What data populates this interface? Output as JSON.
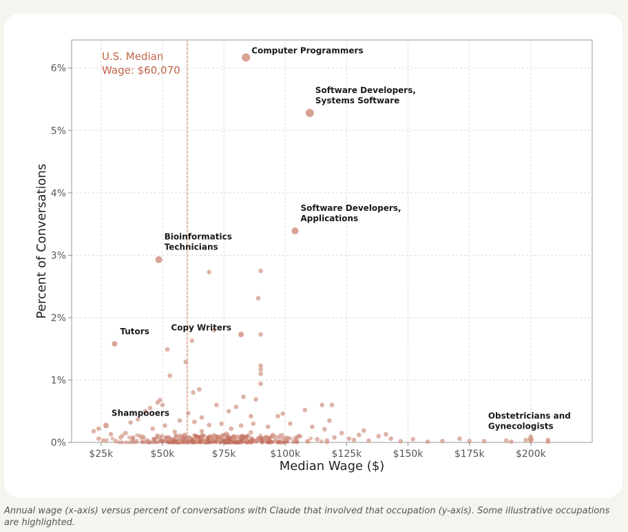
{
  "caption": "Annual wage (x-axis) versus percent of conversations with Claude that involved that occupation (y-axis). Some illustrative occupations are highlighted.",
  "chart_data": {
    "type": "scatter",
    "xlabel": "Median Wage ($)",
    "ylabel": "Percent of Conversations",
    "xlim": [
      13000,
      225000
    ],
    "ylim": [
      0,
      6.45
    ],
    "x_ticks": [
      25000,
      50000,
      75000,
      100000,
      125000,
      150000,
      175000,
      200000
    ],
    "x_tick_labels": [
      "$25k",
      "$50k",
      "$75k",
      "$100k",
      "$125k",
      "$150k",
      "$175k",
      "$200k"
    ],
    "y_ticks": [
      0,
      1,
      2,
      3,
      4,
      5,
      6
    ],
    "y_tick_labels": [
      "0%",
      "1%",
      "2%",
      "3%",
      "4%",
      "5%",
      "6%"
    ],
    "grid": true,
    "colors": {
      "point": "#d4998a",
      "point_dense": "#c47060",
      "reference": "#e8c8bc",
      "reference_text": "#c2644a",
      "label": "#1a1a1a"
    },
    "reference_line": {
      "x": 60070,
      "label_line1": "U.S. Median",
      "label_line2": "Wage: $60,070"
    },
    "highlighted": [
      {
        "x": 84000,
        "y": 6.17,
        "label_lines": [
          "Computer Programmers"
        ],
        "anchor": "right"
      },
      {
        "x": 110000,
        "y": 5.28,
        "label_lines": [
          "Software Developers,",
          "Systems Software"
        ],
        "anchor": "above-right"
      },
      {
        "x": 104000,
        "y": 3.39,
        "label_lines": [
          "Software Developers,",
          "Applications"
        ],
        "anchor": "above-right"
      },
      {
        "x": 48500,
        "y": 2.93,
        "label_lines": [
          "Bioinformatics",
          "Technicians"
        ],
        "anchor": "above-right"
      },
      {
        "x": 30500,
        "y": 1.58,
        "label_lines": [
          "Tutors"
        ],
        "anchor": "above-right"
      },
      {
        "x": 82000,
        "y": 1.73,
        "label_lines": [
          "Copy Writers"
        ],
        "anchor": "left"
      },
      {
        "x": 27000,
        "y": 0.27,
        "label_lines": [
          "Shampooers"
        ],
        "anchor": "above-right"
      },
      {
        "x": 200000,
        "y": 0.05,
        "label_lines": [
          "Obstetricians and",
          "Gynecologists"
        ],
        "anchor": "above"
      }
    ],
    "points": [
      [
        69000,
        2.73
      ],
      [
        90000,
        2.75
      ],
      [
        89000,
        2.31
      ],
      [
        71000,
        1.8
      ],
      [
        90000,
        1.73
      ],
      [
        62000,
        1.63
      ],
      [
        52000,
        1.49
      ],
      [
        59500,
        1.29
      ],
      [
        90000,
        1.23
      ],
      [
        90000,
        1.17
      ],
      [
        90000,
        1.1
      ],
      [
        53000,
        1.07
      ],
      [
        90000,
        0.94
      ],
      [
        65000,
        0.85
      ],
      [
        62500,
        0.8
      ],
      [
        49000,
        0.68
      ],
      [
        48000,
        0.64
      ],
      [
        50000,
        0.6
      ],
      [
        45000,
        0.55
      ],
      [
        43000,
        0.5
      ],
      [
        83000,
        0.73
      ],
      [
        88000,
        0.69
      ],
      [
        72000,
        0.6
      ],
      [
        80000,
        0.57
      ],
      [
        115000,
        0.6
      ],
      [
        119000,
        0.6
      ],
      [
        108000,
        0.52
      ],
      [
        99000,
        0.46
      ],
      [
        97000,
        0.42
      ],
      [
        86000,
        0.42
      ],
      [
        77000,
        0.5
      ],
      [
        60500,
        0.47
      ],
      [
        57000,
        0.35
      ],
      [
        40000,
        0.37
      ],
      [
        37000,
        0.32
      ],
      [
        24000,
        0.22
      ],
      [
        22000,
        0.18
      ],
      [
        35000,
        0.15
      ],
      [
        46000,
        0.22
      ],
      [
        51000,
        0.27
      ],
      [
        63000,
        0.33
      ],
      [
        66000,
        0.4
      ],
      [
        69000,
        0.28
      ],
      [
        74000,
        0.3
      ],
      [
        78000,
        0.22
      ],
      [
        93000,
        0.25
      ],
      [
        102000,
        0.3
      ],
      [
        111000,
        0.25
      ],
      [
        116000,
        0.21
      ],
      [
        118000,
        0.35
      ],
      [
        123000,
        0.15
      ],
      [
        130000,
        0.12
      ],
      [
        132000,
        0.19
      ],
      [
        138000,
        0.1
      ],
      [
        141000,
        0.13
      ],
      [
        143000,
        0.06
      ],
      [
        152000,
        0.05
      ],
      [
        171000,
        0.06
      ],
      [
        190000,
        0.03
      ],
      [
        198000,
        0.04
      ],
      [
        200000,
        0.09
      ],
      [
        200000,
        0.02
      ],
      [
        207000,
        0.04
      ],
      [
        207000,
        0.01
      ],
      [
        181000,
        0.02
      ],
      [
        175000,
        0.02
      ],
      [
        164000,
        0.02
      ],
      [
        147000,
        0.02
      ],
      [
        128000,
        0.04
      ],
      [
        120000,
        0.08
      ],
      [
        106000,
        0.1
      ],
      [
        95000,
        0.12
      ],
      [
        86000,
        0.16
      ],
      [
        82000,
        0.27
      ],
      [
        87000,
        0.3
      ],
      [
        76000,
        0.14
      ],
      [
        71000,
        0.09
      ],
      [
        66000,
        0.18
      ],
      [
        59000,
        0.12
      ],
      [
        55000,
        0.17
      ],
      [
        42000,
        0.09
      ],
      [
        33000,
        0.08
      ],
      [
        29000,
        0.13
      ],
      [
        26000,
        0.03
      ],
      [
        24000,
        0.06
      ],
      [
        31000,
        0.02
      ],
      [
        38000,
        0.04
      ],
      [
        44000,
        0.03
      ],
      [
        48000,
        0.11
      ],
      [
        53000,
        0.05
      ],
      [
        57000,
        0.02
      ],
      [
        61000,
        0.07
      ],
      [
        64000,
        0.04
      ],
      [
        67000,
        0.02
      ],
      [
        70000,
        0.05
      ],
      [
        73000,
        0.03
      ],
      [
        79000,
        0.06
      ],
      [
        84000,
        0.04
      ],
      [
        88000,
        0.02
      ],
      [
        92000,
        0.05
      ],
      [
        96000,
        0.03
      ],
      [
        100000,
        0.06
      ],
      [
        104000,
        0.04
      ],
      [
        109000,
        0.02
      ],
      [
        113000,
        0.05
      ],
      [
        117000,
        0.03
      ],
      [
        126000,
        0.06
      ],
      [
        134000,
        0.03
      ],
      [
        158000,
        0.01
      ],
      [
        192000,
        0.01
      ]
    ],
    "dense_cluster": {
      "x_range": [
        22000,
        121000
      ],
      "y_max": 0.12
    }
  }
}
